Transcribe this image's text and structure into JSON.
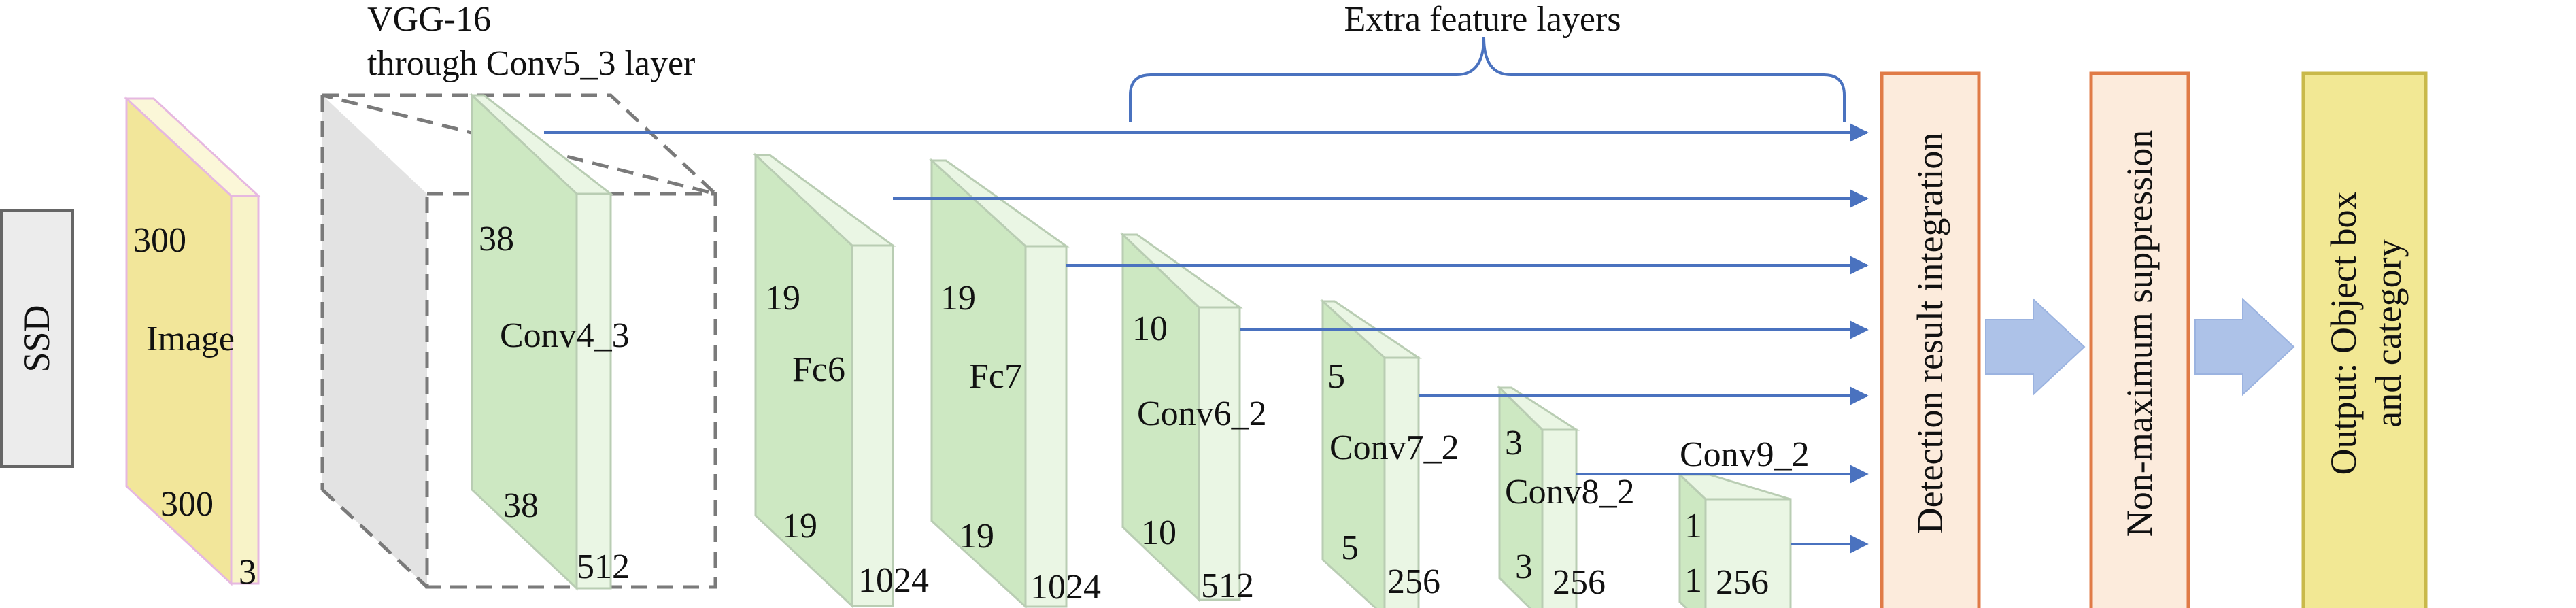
{
  "colors": {
    "image_face": "#f2e69a",
    "image_side": "#f8f3c8",
    "image_edge": "#e6b8e0",
    "layer_face": "#cde8c2",
    "layer_side": "#eaf6e4",
    "layer_edge": "#b9cdb3",
    "vgg_side": "#e3e3e3",
    "dash": "#7a7a7a",
    "arrow": "#4a72bf",
    "block_arrow": "#adc2e8",
    "box_orange_fill": "#fcebdc",
    "box_orange_edge": "#e07b47",
    "box_output_fill": "#f2e894",
    "box_output_edge": "#c9b94a",
    "ssd_fill": "#ececec",
    "ssd_edge": "#666666"
  },
  "ssd": {
    "label": "SSD"
  },
  "vgg": {
    "line1": "VGG-16",
    "line2": "through Conv5_3 layer"
  },
  "extra": {
    "label": "Extra feature layers"
  },
  "image": {
    "name": "Image",
    "height": "300",
    "width": "300",
    "depth": "3"
  },
  "layers": [
    {
      "name": "Conv4_3",
      "top": "38",
      "bottom": "38",
      "depth": "512"
    },
    {
      "name": "Fc6",
      "top": "19",
      "bottom": "19",
      "depth": "1024"
    },
    {
      "name": "Fc7",
      "top": "19",
      "bottom": "19",
      "depth": "1024"
    },
    {
      "name": "Conv6_2",
      "top": "10",
      "bottom": "10",
      "depth": "512"
    },
    {
      "name": "Conv7_2",
      "top": "5",
      "bottom": "5",
      "depth": "256"
    },
    {
      "name": "Conv8_2",
      "top": "3",
      "bottom": "3",
      "depth": "256"
    },
    {
      "name": "Conv9_2",
      "top": "1",
      "bottom": "1",
      "depth": "256"
    }
  ],
  "boxes": {
    "integration": "Detection result integration",
    "nms": "Non-maximum suppression",
    "output_line1": "Output: Object box",
    "output_line2": "and category"
  }
}
